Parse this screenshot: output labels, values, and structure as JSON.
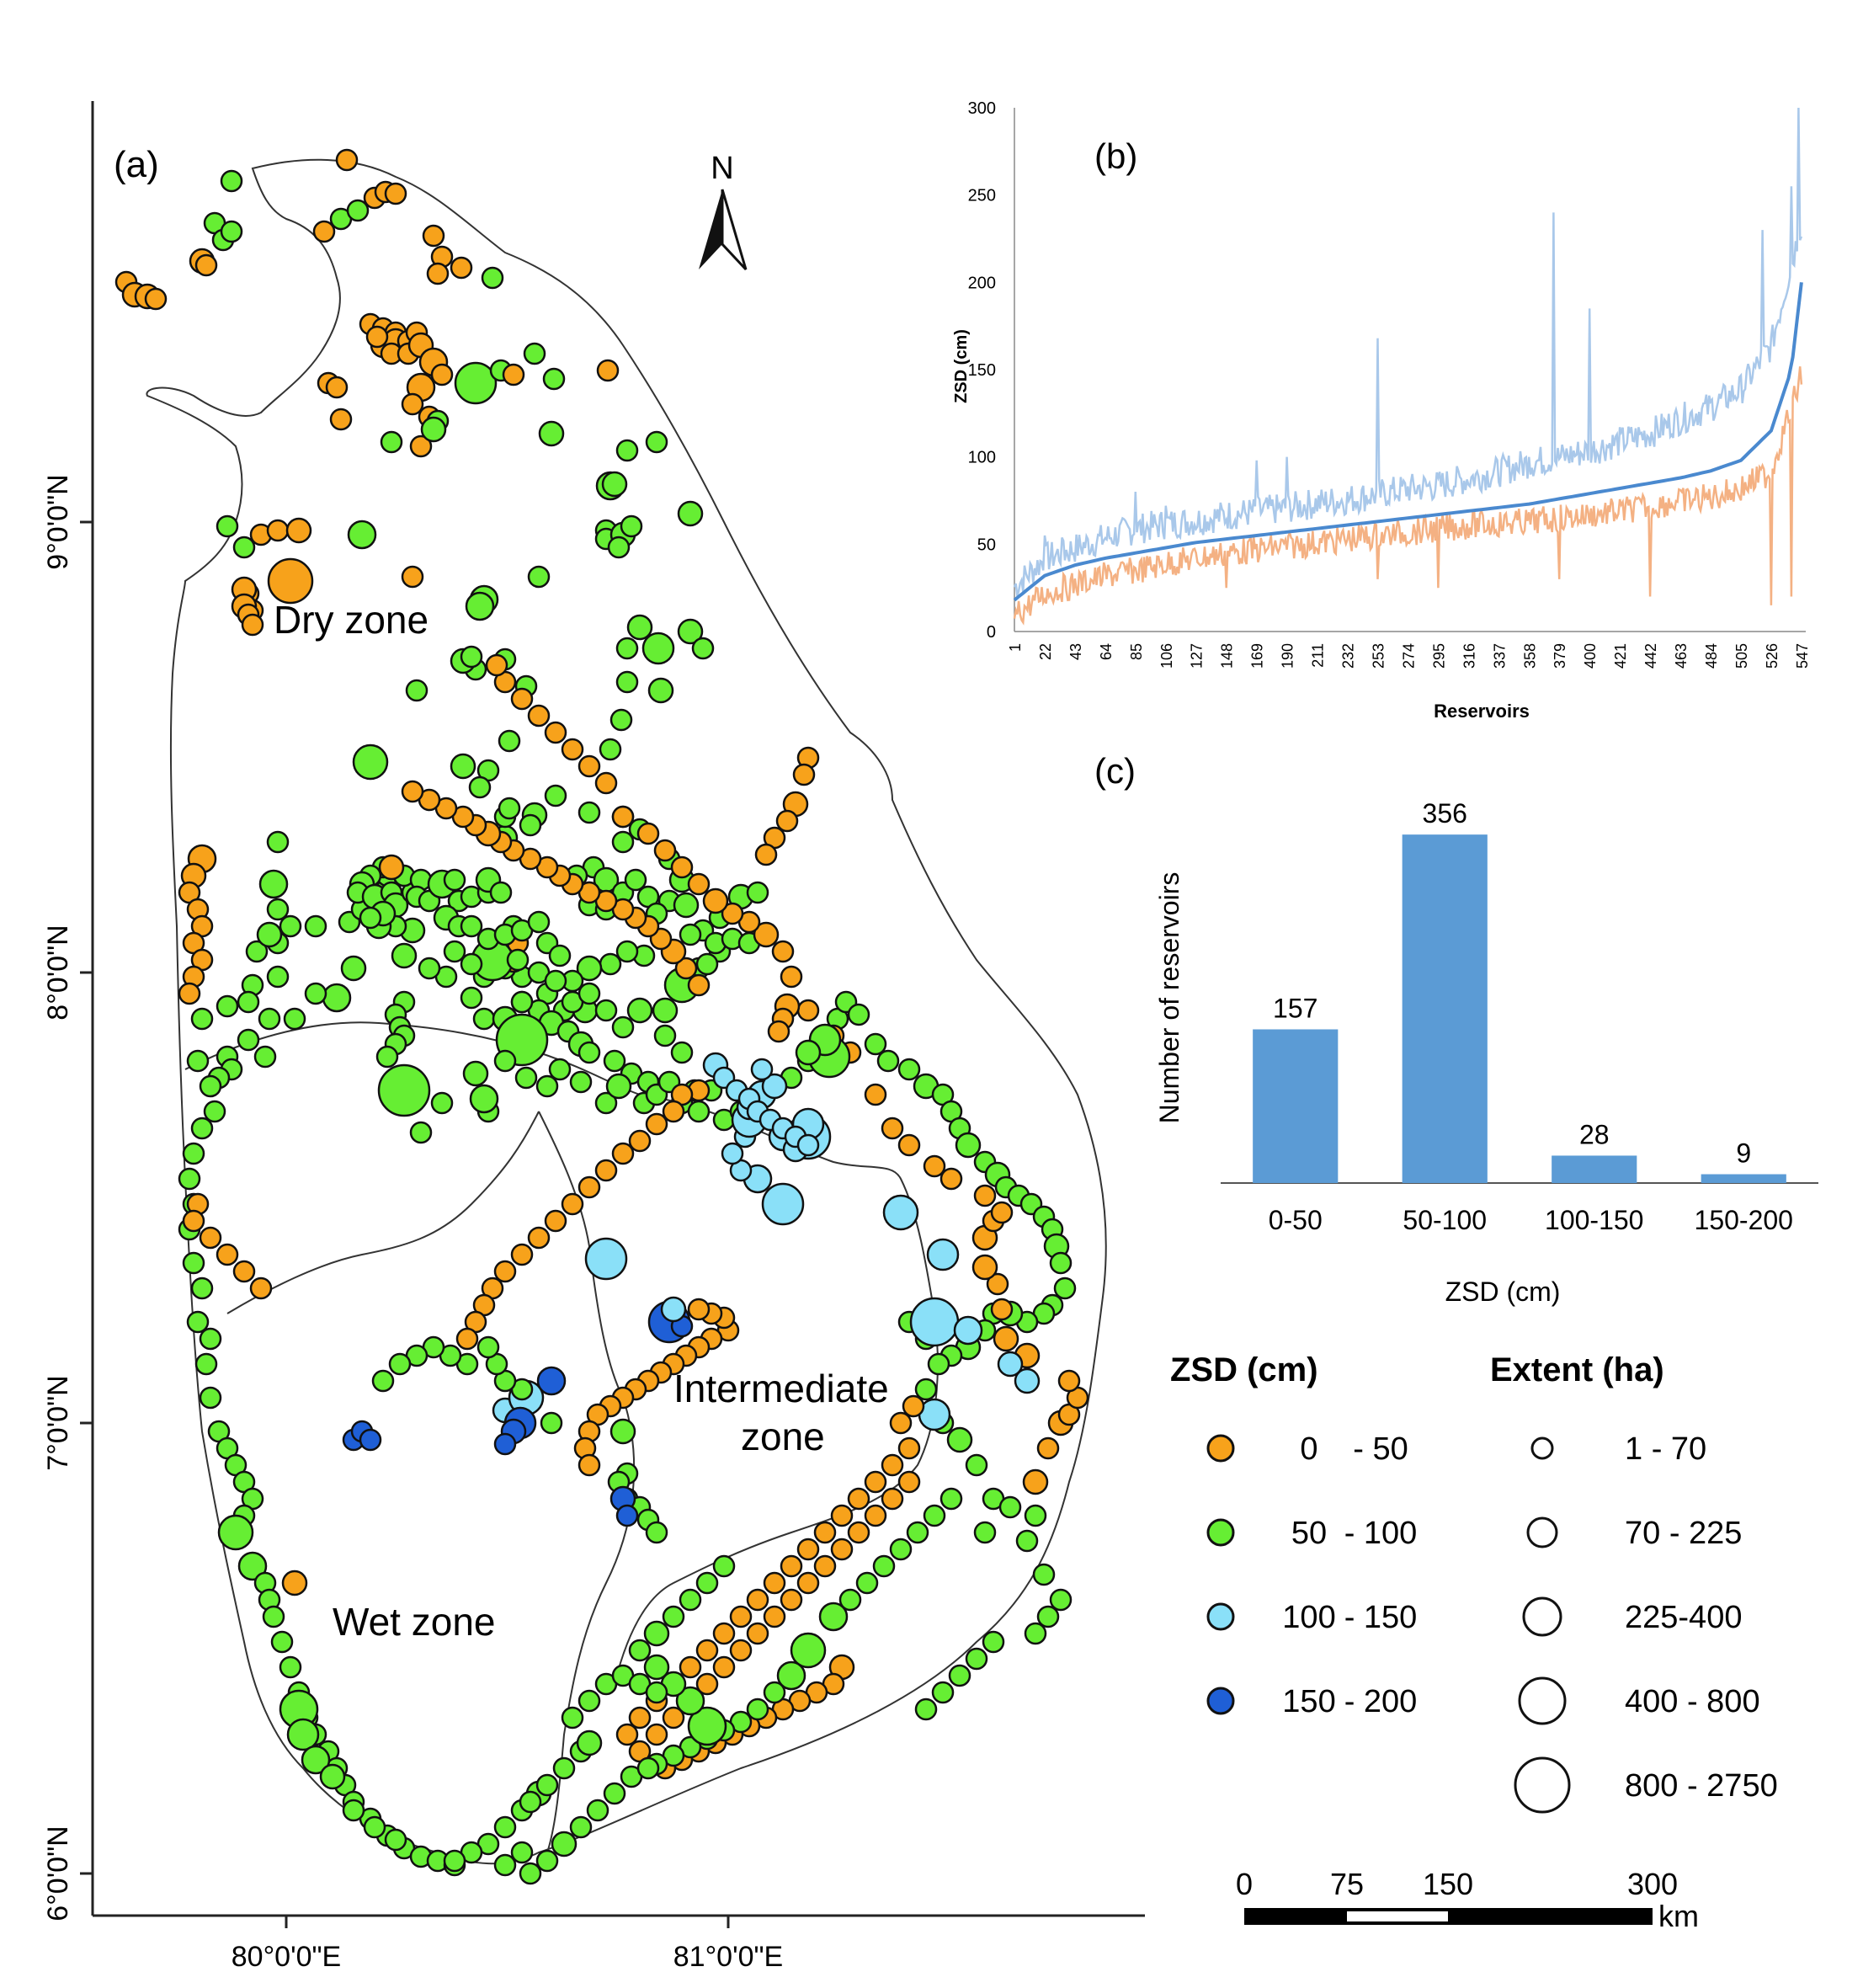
{
  "panel_a": {
    "label": "(a)",
    "north_label": "N",
    "zone_labels": {
      "dry": "Dry zone",
      "intermediate_1": "Intermediate",
      "intermediate_2": "zone",
      "wet": "Wet  zone"
    },
    "lat_ticks": [
      {
        "lat": 9,
        "label": "9°0'0\"N"
      },
      {
        "lat": 8,
        "label": "8°0'0\"N"
      },
      {
        "lat": 7,
        "label": "7°0'0\"N"
      },
      {
        "lat": 6,
        "label": "6°0'0\"N"
      }
    ],
    "lon_ticks": [
      {
        "lon": 80,
        "label": "80°0'0\"E"
      },
      {
        "lon": 81,
        "label": "81°0'0\"E"
      }
    ]
  },
  "chart_data": [
    {
      "type": "line",
      "panel": "(b)",
      "xlabel": "Reservoirs",
      "ylabel": "ZSD (cm)",
      "ylim": [
        0,
        300
      ],
      "y_ticks": [
        0,
        50,
        100,
        150,
        200,
        250,
        300
      ],
      "x_ticks": [
        1,
        22,
        43,
        64,
        85,
        106,
        127,
        148,
        169,
        190,
        211,
        232,
        253,
        274,
        295,
        316,
        337,
        358,
        379,
        400,
        421,
        442,
        463,
        484,
        505,
        526,
        547
      ],
      "xlim": [
        1,
        550
      ],
      "series": [
        {
          "color": "#a9c8ea",
          "style": "upper",
          "anchors": [
            [
              1,
              22
            ],
            [
              22,
              38
            ],
            [
              43,
              44
            ],
            [
              64,
              50
            ],
            [
              85,
              55
            ],
            [
              106,
              58
            ],
            [
              127,
              60
            ],
            [
              148,
              63
            ],
            [
              169,
              65
            ],
            [
              190,
              67
            ],
            [
              211,
              70
            ],
            [
              232,
              72
            ],
            [
              253,
              75
            ],
            [
              274,
              78
            ],
            [
              295,
              80
            ],
            [
              316,
              84
            ],
            [
              337,
              88
            ],
            [
              358,
              93
            ],
            [
              379,
              96
            ],
            [
              400,
              100
            ],
            [
              421,
              105
            ],
            [
              442,
              110
            ],
            [
              463,
              118
            ],
            [
              484,
              125
            ],
            [
              505,
              135
            ],
            [
              526,
              160
            ],
            [
              547,
              230
            ]
          ],
          "spikes": [
            [
              22,
              55
            ],
            [
              35,
              52
            ],
            [
              85,
              80
            ],
            [
              106,
              72
            ],
            [
              169,
              98
            ],
            [
              190,
              100
            ],
            [
              253,
              168
            ],
            [
              358,
              100
            ],
            [
              375,
              240
            ],
            [
              400,
              185
            ],
            [
              520,
              230
            ],
            [
              540,
              255
            ],
            [
              545,
              300
            ]
          ]
        },
        {
          "color": "#f4b183",
          "style": "lower",
          "anchors": [
            [
              1,
              12
            ],
            [
              22,
              25
            ],
            [
              43,
              30
            ],
            [
              64,
              35
            ],
            [
              85,
              38
            ],
            [
              106,
              42
            ],
            [
              127,
              45
            ],
            [
              148,
              48
            ],
            [
              169,
              50
            ],
            [
              190,
              52
            ],
            [
              211,
              54
            ],
            [
              232,
              56
            ],
            [
              253,
              58
            ],
            [
              274,
              60
            ],
            [
              295,
              62
            ],
            [
              316,
              64
            ],
            [
              337,
              65
            ],
            [
              358,
              66
            ],
            [
              379,
              68
            ],
            [
              400,
              70
            ],
            [
              421,
              72
            ],
            [
              442,
              75
            ],
            [
              463,
              78
            ],
            [
              484,
              80
            ],
            [
              505,
              85
            ],
            [
              526,
              95
            ],
            [
              547,
              150
            ]
          ],
          "dips": [
            [
              148,
              25
            ],
            [
              253,
              30
            ],
            [
              295,
              25
            ],
            [
              379,
              30
            ],
            [
              442,
              20
            ],
            [
              526,
              15
            ],
            [
              540,
              20
            ]
          ]
        },
        {
          "color": "#4a89cf",
          "style": "mean",
          "anchors": [
            [
              1,
              18
            ],
            [
              22,
              32
            ],
            [
              43,
              38
            ],
            [
              64,
              42
            ],
            [
              85,
              45
            ],
            [
              106,
              48
            ],
            [
              127,
              51
            ],
            [
              148,
              53
            ],
            [
              169,
              55
            ],
            [
              190,
              57
            ],
            [
              211,
              59
            ],
            [
              232,
              61
            ],
            [
              253,
              63
            ],
            [
              274,
              65
            ],
            [
              295,
              67
            ],
            [
              316,
              69
            ],
            [
              337,
              71
            ],
            [
              358,
              73
            ],
            [
              379,
              76
            ],
            [
              400,
              79
            ],
            [
              421,
              82
            ],
            [
              442,
              85
            ],
            [
              463,
              88
            ],
            [
              484,
              92
            ],
            [
              505,
              98
            ],
            [
              526,
              115
            ],
            [
              540,
              150
            ],
            [
              547,
              200
            ]
          ]
        }
      ]
    },
    {
      "type": "bar",
      "panel": "(c)",
      "categories": [
        "0-50",
        "50-100",
        "100-150",
        "150-200"
      ],
      "values": [
        157,
        356,
        28,
        9
      ],
      "data_labels": [
        "157",
        "356",
        "28",
        "9"
      ],
      "xlabel": "ZSD (cm)",
      "ylabel": "Number of reservoirs",
      "ylim": [
        0,
        400
      ],
      "color": "#5b9bd5"
    }
  ],
  "legend": {
    "zsd_title": "ZSD (cm)",
    "extent_title": "Extent (ha)",
    "zsd_classes": [
      {
        "low": "0",
        "high": "- 50",
        "color": "#f7a21b"
      },
      {
        "low": "50",
        "high": "- 100",
        "color": "#66ee33"
      },
      {
        "low": "100",
        "high": "- 150",
        "color": "#8ae0f8"
      },
      {
        "low": "150",
        "high": "- 200",
        "color": "#1f5fd6"
      }
    ],
    "extent_classes": [
      {
        "label": "1 - 70"
      },
      {
        "label": "70 - 225"
      },
      {
        "label": "225-400"
      },
      {
        "label": "400 - 800"
      },
      {
        "label": "800 - 2750"
      }
    ]
  },
  "scale_bar": {
    "ticks": [
      "0",
      "75",
      "150",
      "300"
    ],
    "unit": "km"
  }
}
